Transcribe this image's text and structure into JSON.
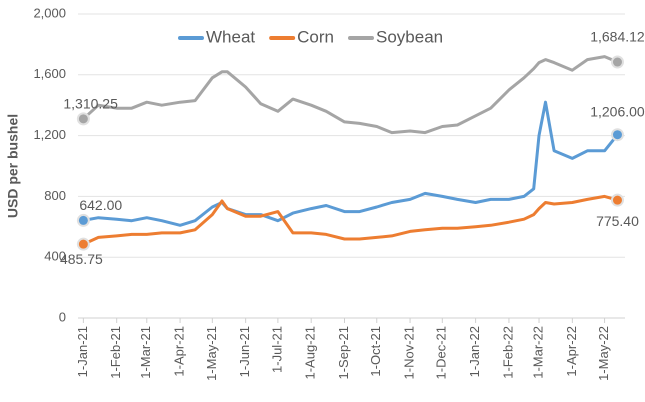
{
  "chart_data": {
    "type": "line",
    "y_label": "USD per bushel",
    "x": [
      "2021-01-01",
      "2021-01-15",
      "2021-02-01",
      "2021-02-15",
      "2021-03-01",
      "2021-03-15",
      "2021-04-01",
      "2021-04-15",
      "2021-05-01",
      "2021-05-10",
      "2021-05-15",
      "2021-06-01",
      "2021-06-15",
      "2021-07-01",
      "2021-07-15",
      "2021-08-01",
      "2021-08-15",
      "2021-09-01",
      "2021-09-15",
      "2021-10-01",
      "2021-10-15",
      "2021-11-01",
      "2021-11-15",
      "2021-12-01",
      "2021-12-15",
      "2022-01-01",
      "2022-01-15",
      "2022-02-01",
      "2022-02-15",
      "2022-02-24",
      "2022-03-01",
      "2022-03-07",
      "2022-03-15",
      "2022-04-01",
      "2022-04-15",
      "2022-05-01",
      "2022-05-13"
    ],
    "series": [
      {
        "name": "Wheat",
        "color": "#5b9bd5",
        "values": [
          642,
          660,
          650,
          640,
          660,
          640,
          610,
          640,
          730,
          760,
          720,
          680,
          680,
          640,
          690,
          720,
          740,
          700,
          700,
          730,
          760,
          780,
          820,
          800,
          780,
          760,
          780,
          780,
          800,
          850,
          1200,
          1420,
          1100,
          1050,
          1100,
          1100,
          1206
        ],
        "value_labels": [
          "642.00",
          null,
          null,
          null,
          null,
          null,
          null,
          null,
          null,
          null,
          null,
          null,
          null,
          null,
          null,
          null,
          null,
          null,
          null,
          null,
          null,
          null,
          null,
          null,
          null,
          null,
          null,
          null,
          null,
          null,
          null,
          null,
          null,
          null,
          null,
          null,
          "1,206.00"
        ]
      },
      {
        "name": "Corn",
        "color": "#ed7d31",
        "values": [
          485.75,
          530,
          540,
          550,
          550,
          560,
          560,
          580,
          680,
          770,
          720,
          670,
          670,
          700,
          560,
          560,
          550,
          520,
          520,
          530,
          540,
          570,
          580,
          590,
          590,
          600,
          610,
          630,
          650,
          680,
          720,
          760,
          750,
          760,
          780,
          800,
          775.4
        ],
        "value_labels": [
          "485.75",
          null,
          null,
          null,
          null,
          null,
          null,
          null,
          null,
          null,
          null,
          null,
          null,
          null,
          null,
          null,
          null,
          null,
          null,
          null,
          null,
          null,
          null,
          null,
          null,
          null,
          null,
          null,
          null,
          null,
          null,
          null,
          null,
          null,
          null,
          null,
          "775.40"
        ]
      },
      {
        "name": "Soybean",
        "color": "#a5a5a5",
        "values": [
          1310.25,
          1400,
          1380,
          1380,
          1420,
          1400,
          1420,
          1430,
          1580,
          1620,
          1620,
          1520,
          1410,
          1360,
          1440,
          1400,
          1360,
          1290,
          1280,
          1260,
          1220,
          1230,
          1220,
          1260,
          1270,
          1330,
          1380,
          1500,
          1580,
          1640,
          1680,
          1700,
          1680,
          1630,
          1700,
          1720,
          1684.12
        ],
        "value_labels": [
          "1,310.25",
          null,
          null,
          null,
          null,
          null,
          null,
          null,
          null,
          null,
          null,
          null,
          null,
          null,
          null,
          null,
          null,
          null,
          null,
          null,
          null,
          null,
          null,
          null,
          null,
          null,
          null,
          null,
          null,
          null,
          null,
          null,
          null,
          null,
          null,
          null,
          "1,684.12"
        ]
      }
    ],
    "xlim": [
      "2020-12-27",
      "2022-05-20"
    ],
    "xticks": [
      {
        "value": "2021-01-01",
        "label": "1-Jan-21"
      },
      {
        "value": "2021-02-01",
        "label": "1-Feb-21"
      },
      {
        "value": "2021-03-01",
        "label": "1-Mar-21"
      },
      {
        "value": "2021-04-01",
        "label": "1-Apr-21"
      },
      {
        "value": "2021-05-01",
        "label": "1-May-21"
      },
      {
        "value": "2021-06-01",
        "label": "1-Jun-21"
      },
      {
        "value": "2021-07-01",
        "label": "1-Jul-21"
      },
      {
        "value": "2021-08-01",
        "label": "1-Aug-21"
      },
      {
        "value": "2021-09-01",
        "label": "1-Sep-21"
      },
      {
        "value": "2021-10-01",
        "label": "1-Oct-21"
      },
      {
        "value": "2021-11-01",
        "label": "1-Nov-21"
      },
      {
        "value": "2021-12-01",
        "label": "1-Dec-21"
      },
      {
        "value": "2022-01-01",
        "label": "1-Jan-22"
      },
      {
        "value": "2022-02-01",
        "label": "1-Feb-22"
      },
      {
        "value": "2022-03-01",
        "label": "1-Mar-22"
      },
      {
        "value": "2022-04-01",
        "label": "1-Apr-22"
      },
      {
        "value": "2022-05-01",
        "label": "1-May-22"
      }
    ],
    "ylim": [
      0,
      2000
    ],
    "yticks": [
      0,
      {
        "value": 400,
        "label": "400"
      },
      {
        "value": 800,
        "label": "800"
      },
      {
        "value": 1200,
        "label": "1,200"
      },
      {
        "value": 1600,
        "label": "1,600"
      },
      {
        "value": 2000,
        "label": "2,000"
      }
    ],
    "grid": true,
    "legend": "top"
  }
}
